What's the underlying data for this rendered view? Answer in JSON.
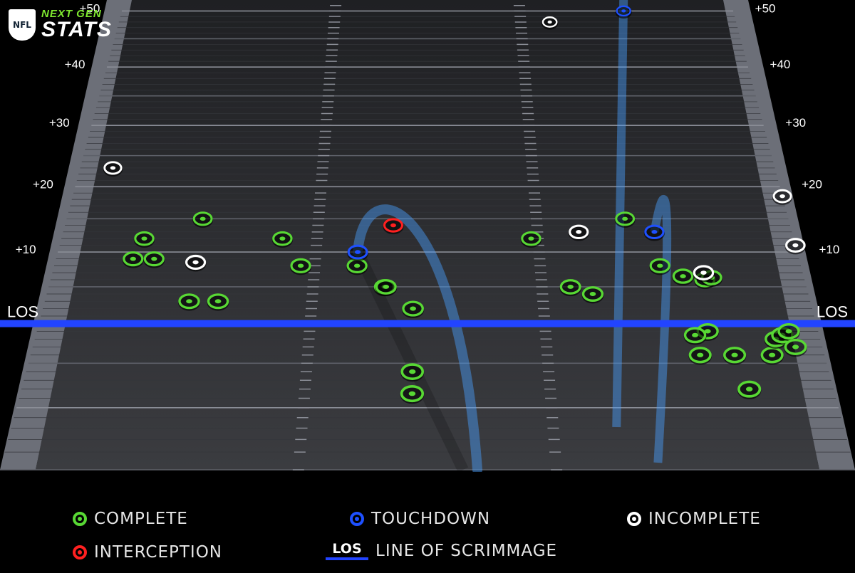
{
  "logo": {
    "league": "NFL",
    "line1": "NEXT GEN",
    "line2": "STATS"
  },
  "field": {
    "yard_labels": [
      "+10",
      "+20",
      "+30",
      "+40",
      "+50"
    ],
    "los_label": "LOS"
  },
  "legend": {
    "complete": "COMPLETE",
    "touchdown": "TOUCHDOWN",
    "incomplete": "INCOMPLETE",
    "interception": "INTERCEPTION",
    "los_swatch": "LOS",
    "line_of_scrimmage": "LINE OF SCRIMMAGE"
  },
  "colors": {
    "complete": "#58d834",
    "touchdown": "#1e50ff",
    "incomplete": "#ffffff",
    "interception": "#ff2020",
    "los": "#2244ff",
    "trail": "#4aa0ff"
  },
  "chart_data": {
    "type": "scatter",
    "x_axis": "field position, yards from left sideline (0-53)",
    "ylabel": "yards past line of scrimmage",
    "ylim": [
      -15,
      52
    ],
    "xlim": [
      0,
      53
    ],
    "yard_ticks": [
      10,
      20,
      30,
      40,
      50
    ],
    "series": [
      {
        "name": "COMPLETE",
        "color": "#58d834",
        "points": [
          [
            6,
            12
          ],
          [
            10,
            15
          ],
          [
            5.5,
            9
          ],
          [
            7,
            9
          ],
          [
            16,
            12
          ],
          [
            17.5,
            8
          ],
          [
            21.5,
            8
          ],
          [
            23.5,
            5
          ],
          [
            23.6,
            5
          ],
          [
            10,
            3
          ],
          [
            12,
            3
          ],
          [
            25.5,
            2
          ],
          [
            25.5,
            -6
          ],
          [
            25.5,
            -8.5
          ],
          [
            34,
            12
          ],
          [
            36.5,
            5
          ],
          [
            38,
            4
          ],
          [
            41,
            15
          ],
          [
            43,
            8
          ],
          [
            44.5,
            6.5
          ],
          [
            46,
            6
          ],
          [
            46.5,
            6.3
          ],
          [
            45.5,
            -1
          ],
          [
            44.6,
            -1.5
          ],
          [
            44.7,
            -4
          ],
          [
            47,
            -4
          ],
          [
            47.5,
            -8
          ],
          [
            49.5,
            -4
          ],
          [
            50,
            -2
          ],
          [
            50.5,
            -1.5
          ],
          [
            51,
            -1
          ],
          [
            51.2,
            -3
          ]
        ]
      },
      {
        "name": "TOUCHDOWN",
        "color": "#1e50ff",
        "points": [
          [
            21.5,
            10
          ],
          [
            43,
            13
          ],
          [
            43.5,
            50
          ]
        ]
      },
      {
        "name": "INCOMPLETE",
        "color": "#ffffff",
        "points": [
          [
            2.5,
            23
          ],
          [
            10,
            8.5
          ],
          [
            37.5,
            13
          ],
          [
            37,
            48
          ],
          [
            46,
            7
          ],
          [
            53,
            11
          ],
          [
            53,
            18.5
          ]
        ]
      },
      {
        "name": "INTERCEPTION",
        "color": "#ff2020",
        "points": [
          [
            24,
            14
          ]
        ]
      }
    ]
  }
}
